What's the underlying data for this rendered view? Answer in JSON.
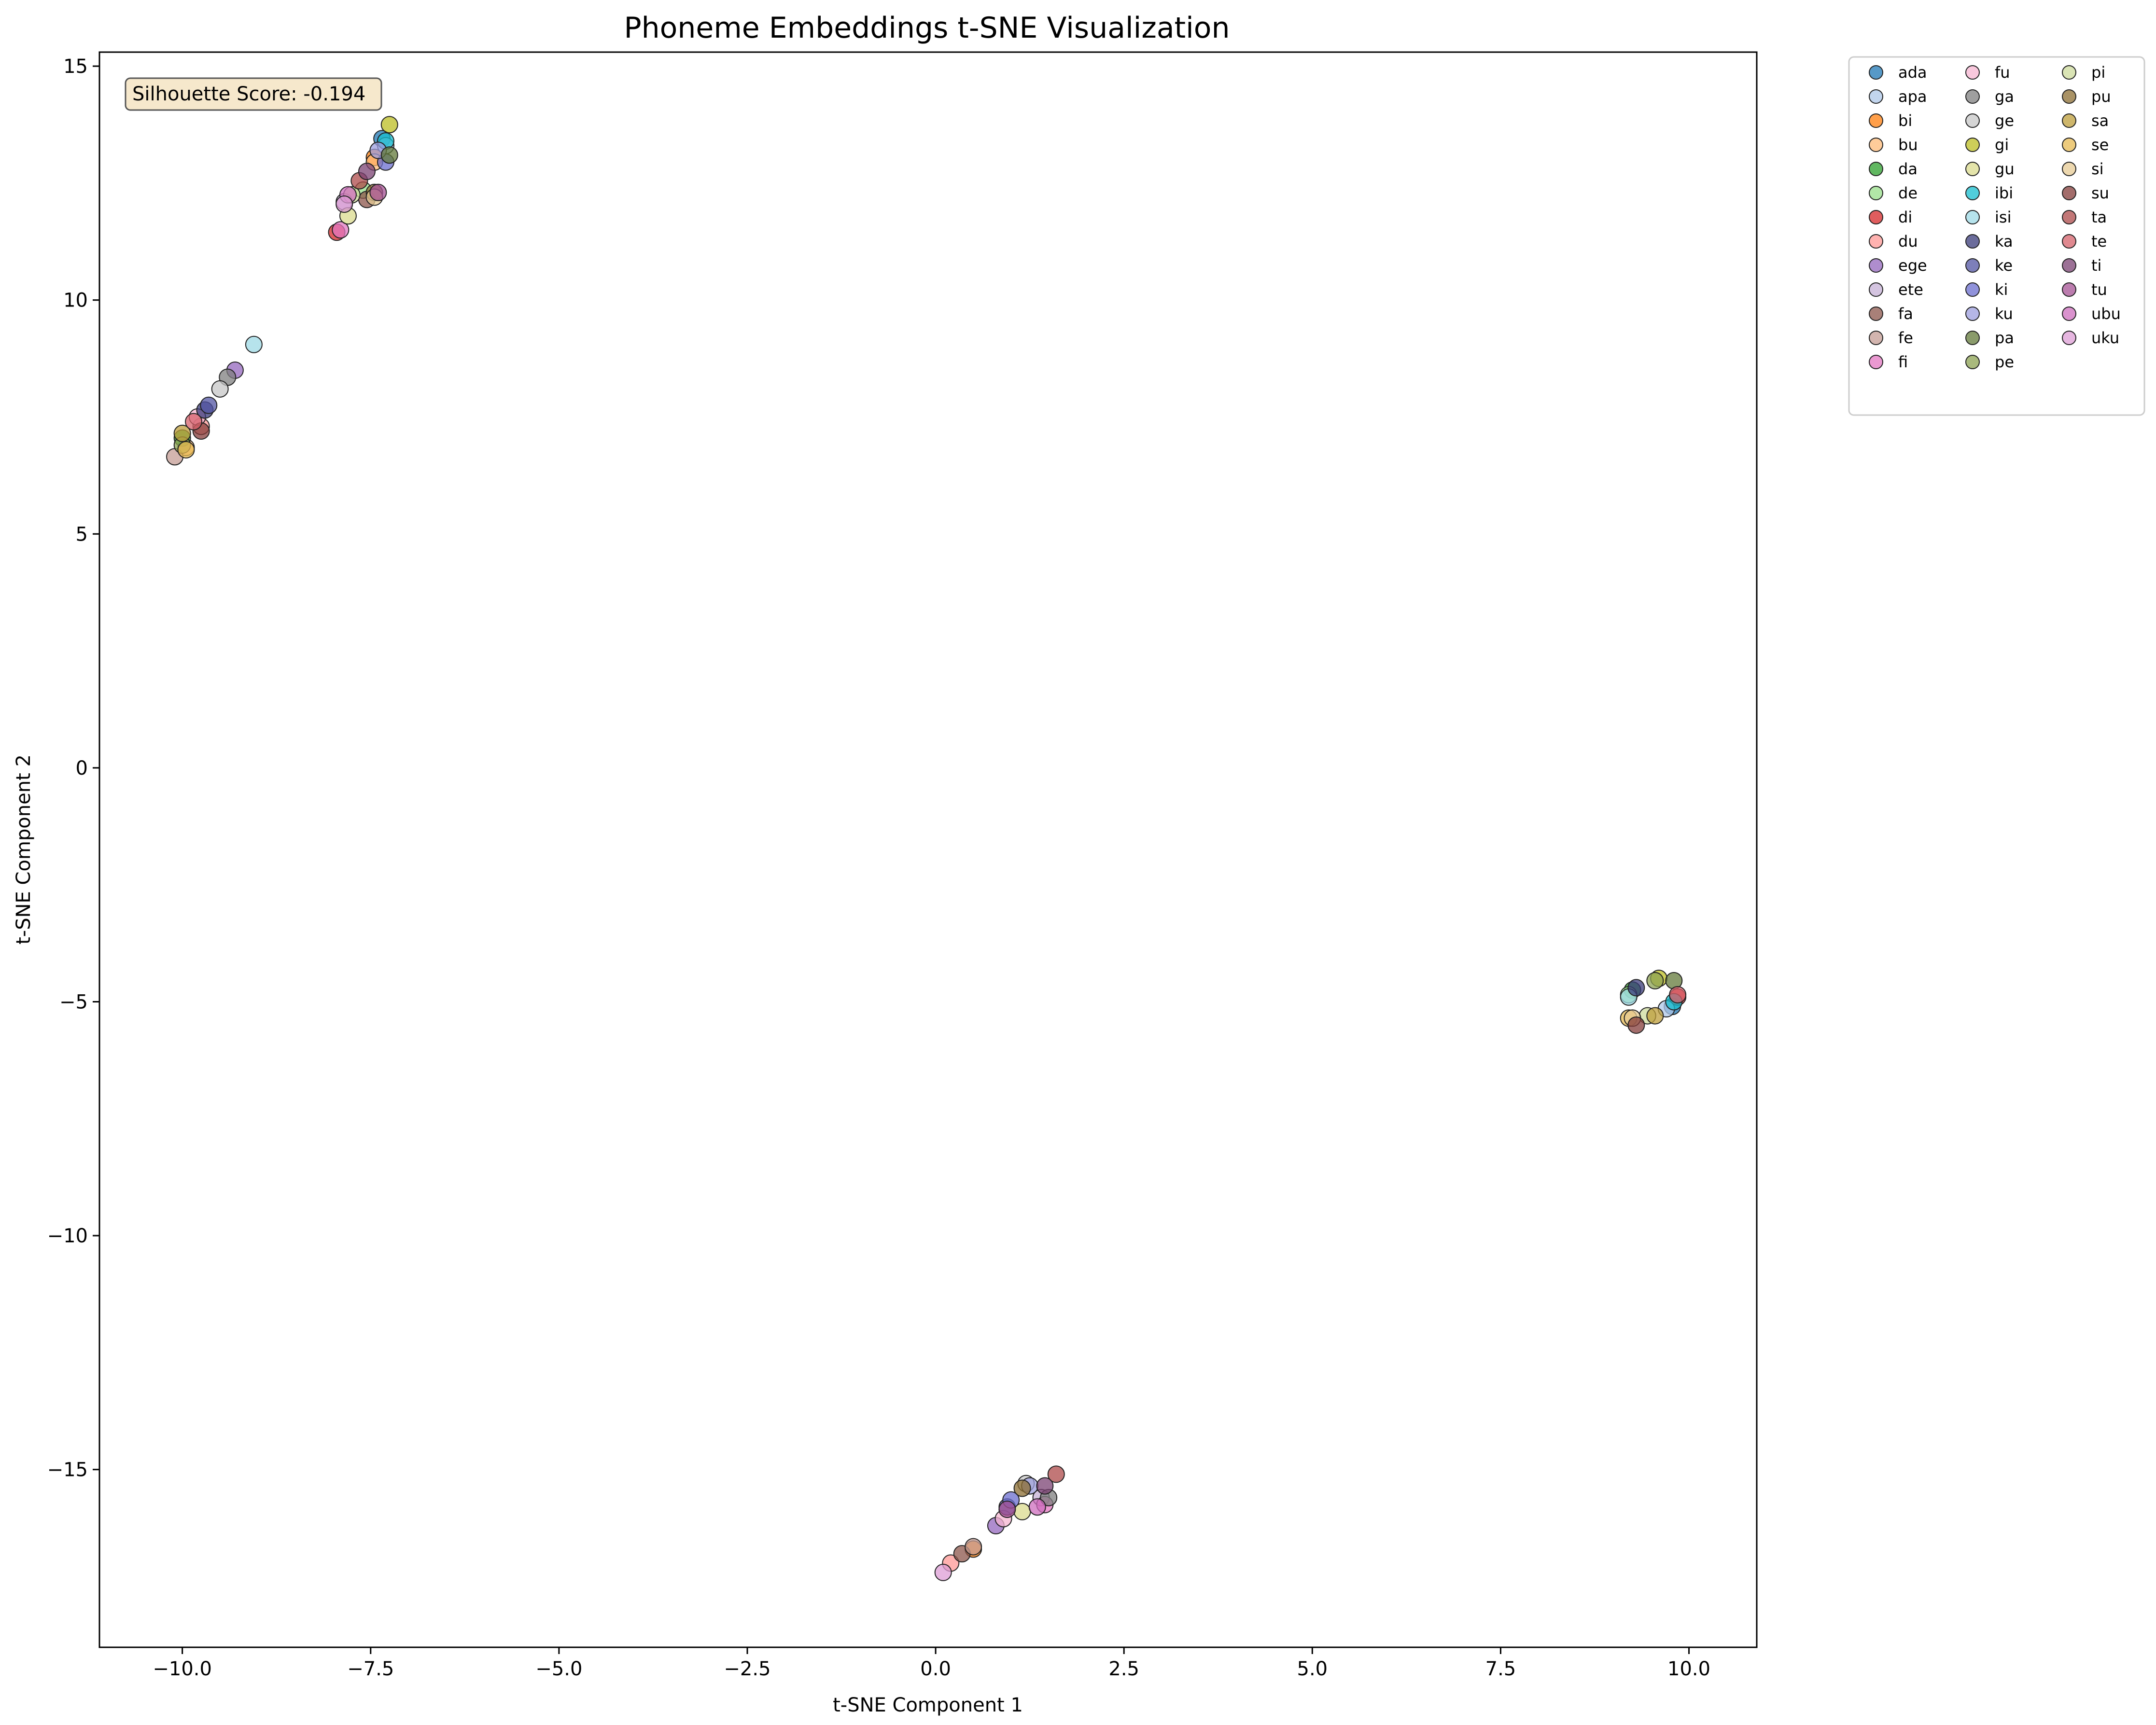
{
  "chart_data": {
    "type": "scatter",
    "title": "Phoneme Embeddings t-SNE Visualization",
    "xlabel": "t-SNE Component 1",
    "ylabel": "t-SNE Component 2",
    "xlim": [
      -11.1,
      10.9
    ],
    "ylim": [
      -18.8,
      15.3
    ],
    "x_ticks": [
      -10.0,
      -7.5,
      -5.0,
      -2.5,
      0.0,
      2.5,
      5.0,
      7.5,
      10.0
    ],
    "x_tick_labels": [
      "−10.0",
      "−7.5",
      "−5.0",
      "−2.5",
      "0.0",
      "2.5",
      "5.0",
      "7.5",
      "10.0"
    ],
    "y_ticks": [
      15,
      10,
      5,
      0,
      -5,
      -10,
      -15
    ],
    "y_tick_labels": [
      "15",
      "10",
      "5",
      "0",
      "−5",
      "−10",
      "−15"
    ],
    "grid": false,
    "legend_position": "outside-top-right",
    "annotation": "Silhouette Score: -0.194",
    "series": [
      {
        "name": "ada",
        "color": "#1f77b4",
        "points": [
          [
            -7.35,
            13.45
          ],
          [
            9.78,
            -5.1
          ]
        ]
      },
      {
        "name": "apa",
        "color": "#aec7e8",
        "points": [
          [
            -7.3,
            13.3
          ],
          [
            9.7,
            -5.15
          ]
        ]
      },
      {
        "name": "bi",
        "color": "#ff7f0e",
        "points": [
          [
            -7.45,
            13.05
          ],
          [
            0.5,
            -16.7
          ]
        ]
      },
      {
        "name": "bu",
        "color": "#ffbb78",
        "points": [
          [
            -7.45,
            12.95
          ],
          [
            -9.95,
            6.85
          ]
        ]
      },
      {
        "name": "da",
        "color": "#2ca02c",
        "points": [
          [
            -10.0,
            7.05
          ],
          [
            9.25,
            -4.75
          ]
        ]
      },
      {
        "name": "de",
        "color": "#98df8a",
        "points": [
          [
            -7.6,
            12.35
          ],
          [
            9.2,
            -4.85
          ]
        ]
      },
      {
        "name": "di",
        "color": "#d62728",
        "points": [
          [
            -7.95,
            11.45
          ],
          [
            9.85,
            -4.9
          ]
        ]
      },
      {
        "name": "du",
        "color": "#ff9896",
        "points": [
          [
            -9.75,
            7.3
          ],
          [
            0.2,
            -17.0
          ]
        ]
      },
      {
        "name": "ege",
        "color": "#9467bd",
        "points": [
          [
            -9.3,
            8.5
          ],
          [
            0.8,
            -16.2
          ]
        ]
      },
      {
        "name": "ete",
        "color": "#c5b0d5",
        "points": [
          [
            -7.85,
            12.1
          ],
          [
            1.4,
            -15.6
          ]
        ]
      },
      {
        "name": "fa",
        "color": "#8c564b",
        "points": [
          [
            -7.55,
            12.15
          ],
          [
            0.35,
            -16.8
          ]
        ]
      },
      {
        "name": "fe",
        "color": "#c49c94",
        "points": [
          [
            -10.1,
            6.65
          ],
          [
            0.5,
            -16.65
          ]
        ]
      },
      {
        "name": "fi",
        "color": "#e377c2",
        "points": [
          [
            -7.9,
            11.5
          ],
          [
            1.45,
            -15.75
          ]
        ]
      },
      {
        "name": "fu",
        "color": "#f7b6d2",
        "points": [
          [
            -9.8,
            7.5
          ],
          [
            0.9,
            -16.05
          ]
        ]
      },
      {
        "name": "ga",
        "color": "#7f7f7f",
        "points": [
          [
            -9.4,
            8.35
          ],
          [
            1.5,
            -15.6
          ]
        ]
      },
      {
        "name": "ge",
        "color": "#c7c7c7",
        "points": [
          [
            -9.5,
            8.1
          ],
          [
            1.2,
            -15.3
          ]
        ]
      },
      {
        "name": "gi",
        "color": "#bcbd22",
        "points": [
          [
            -7.25,
            13.75
          ],
          [
            9.6,
            -4.5
          ]
        ]
      },
      {
        "name": "gu",
        "color": "#dbdb8d",
        "points": [
          [
            -7.8,
            11.8
          ],
          [
            1.15,
            -15.9
          ]
        ]
      },
      {
        "name": "ibi",
        "color": "#17becf",
        "points": [
          [
            -7.3,
            13.4
          ],
          [
            9.8,
            -5.0
          ]
        ]
      },
      {
        "name": "isi",
        "color": "#9edae5",
        "points": [
          [
            -9.05,
            9.05
          ],
          [
            9.2,
            -4.9
          ]
        ]
      },
      {
        "name": "ka",
        "color": "#393b79",
        "points": [
          [
            -9.7,
            7.65
          ],
          [
            9.3,
            -4.7
          ]
        ]
      },
      {
        "name": "ke",
        "color": "#5254a3",
        "points": [
          [
            -9.65,
            7.75
          ],
          [
            0.95,
            -15.8
          ]
        ]
      },
      {
        "name": "ki",
        "color": "#6b6ecf",
        "points": [
          [
            -7.3,
            12.95
          ],
          [
            1.0,
            -15.65
          ]
        ]
      },
      {
        "name": "ku",
        "color": "#9c9ede",
        "points": [
          [
            -7.4,
            13.2
          ],
          [
            1.25,
            -15.35
          ]
        ]
      },
      {
        "name": "pa",
        "color": "#637939",
        "points": [
          [
            -7.25,
            13.1
          ],
          [
            9.8,
            -4.55
          ]
        ]
      },
      {
        "name": "pe",
        "color": "#8ca252",
        "points": [
          [
            -10.0,
            6.9
          ],
          [
            9.55,
            -4.55
          ]
        ]
      },
      {
        "name": "pi",
        "color": "#cedb9c",
        "points": [
          [
            -7.75,
            12.25
          ],
          [
            9.45,
            -5.3
          ]
        ]
      },
      {
        "name": "pu",
        "color": "#8c6d31",
        "points": [
          [
            -7.45,
            12.3
          ],
          [
            1.15,
            -15.4
          ]
        ]
      },
      {
        "name": "sa",
        "color": "#bd9e39",
        "points": [
          [
            -10.0,
            7.15
          ],
          [
            9.55,
            -5.3
          ]
        ]
      },
      {
        "name": "se",
        "color": "#e7ba52",
        "points": [
          [
            -9.95,
            6.8
          ],
          [
            9.2,
            -5.35
          ]
        ]
      },
      {
        "name": "si",
        "color": "#e7cb94",
        "points": [
          [
            -7.45,
            12.2
          ],
          [
            9.25,
            -5.35
          ]
        ]
      },
      {
        "name": "su",
        "color": "#843c39",
        "points": [
          [
            -9.75,
            7.2
          ],
          [
            9.3,
            -5.5
          ]
        ]
      },
      {
        "name": "ta",
        "color": "#ad494a",
        "points": [
          [
            -7.65,
            12.55
          ],
          [
            1.6,
            -15.1
          ]
        ]
      },
      {
        "name": "te",
        "color": "#d6616b",
        "points": [
          [
            -9.85,
            7.4
          ],
          [
            9.85,
            -4.85
          ]
        ]
      },
      {
        "name": "ti",
        "color": "#7b4173",
        "points": [
          [
            -7.55,
            12.75
          ],
          [
            1.45,
            -15.35
          ]
        ]
      },
      {
        "name": "tu",
        "color": "#a55194",
        "points": [
          [
            -7.4,
            12.3
          ],
          [
            0.95,
            -15.85
          ]
        ]
      },
      {
        "name": "ubu",
        "color": "#ce6dbd",
        "points": [
          [
            -7.8,
            12.25
          ],
          [
            1.35,
            -15.8
          ]
        ]
      },
      {
        "name": "uku",
        "color": "#de9ed6",
        "points": [
          [
            -7.85,
            12.05
          ],
          [
            0.1,
            -17.2
          ]
        ]
      }
    ]
  }
}
